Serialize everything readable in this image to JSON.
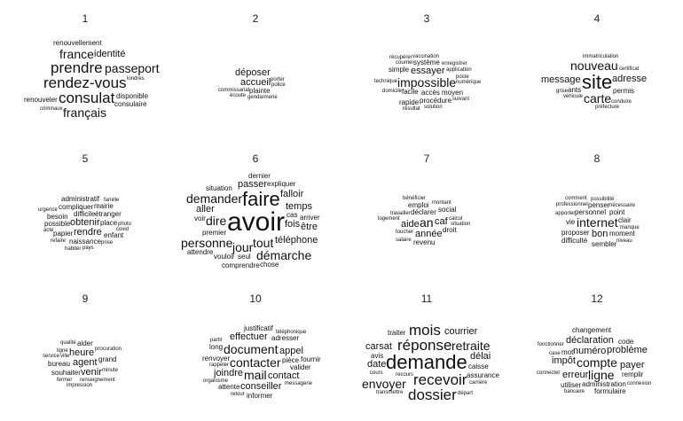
{
  "panels": [
    {
      "number": "1",
      "words": [
        {
          "t": "rendez-vous",
          "s": 5
        },
        {
          "t": "france",
          "s": 4
        },
        {
          "t": "français",
          "s": 4
        },
        {
          "t": "londres",
          "s": 1
        },
        {
          "t": "identité",
          "s": 3
        },
        {
          "t": "criminaux",
          "s": 1
        },
        {
          "t": "prendre",
          "s": 5
        },
        {
          "t": "renouveler",
          "s": 2
        },
        {
          "t": "disponible",
          "s": 2
        },
        {
          "t": "renouvellement",
          "s": 2
        },
        {
          "t": "consulaire",
          "s": 2
        },
        {
          "t": "consulat",
          "s": 5
        },
        {
          "t": "passeport",
          "s": 4
        }
      ]
    },
    {
      "number": "2",
      "words": [
        {
          "t": "gendarmerie",
          "s": 1
        },
        {
          "t": "accueil",
          "s": 3
        },
        {
          "t": "déposer",
          "s": 3
        },
        {
          "t": "porter",
          "s": 1
        },
        {
          "t": "police",
          "s": 1
        },
        {
          "t": "écoute",
          "s": 1
        },
        {
          "t": "commissariat",
          "s": 1
        },
        {
          "t": "plainte",
          "s": 2
        }
      ]
    },
    {
      "number": "3",
      "words": [
        {
          "t": "vaccination",
          "s": 1
        },
        {
          "t": "application",
          "s": 1
        },
        {
          "t": "accès",
          "s": 2
        },
        {
          "t": "procédure",
          "s": 2
        },
        {
          "t": "courriel",
          "s": 1
        },
        {
          "t": "enregistrer",
          "s": 1
        },
        {
          "t": "facile",
          "s": 2
        },
        {
          "t": "solution",
          "s": 1
        },
        {
          "t": "technique",
          "s": 1
        },
        {
          "t": "domicile",
          "s": 1
        },
        {
          "t": "moyen",
          "s": 2
        },
        {
          "t": "essayer",
          "s": 3
        },
        {
          "t": "système",
          "s": 2
        },
        {
          "t": "numérique",
          "s": 1
        },
        {
          "t": "rapide",
          "s": 2
        },
        {
          "t": "simple",
          "s": 2
        },
        {
          "t": "impossible",
          "s": 4
        },
        {
          "t": "résultat",
          "s": 1
        },
        {
          "t": "récupérer",
          "s": 1
        },
        {
          "t": "suivant",
          "s": 1
        },
        {
          "t": "poste",
          "s": 1
        }
      ]
    },
    {
      "number": "4",
      "words": [
        {
          "t": "certificat",
          "s": 1
        },
        {
          "t": "adresse",
          "s": 3
        },
        {
          "t": "véhicule",
          "s": 1
        },
        {
          "t": "ants",
          "s": 2
        },
        {
          "t": "préfecture",
          "s": 1
        },
        {
          "t": "site",
          "s": 6
        },
        {
          "t": "carte",
          "s": 4
        },
        {
          "t": "conduire",
          "s": 1
        },
        {
          "t": "message",
          "s": 3
        },
        {
          "t": "nouveau",
          "s": 4
        },
        {
          "t": "permis",
          "s": 2
        },
        {
          "t": "immatriculation",
          "s": 1
        },
        {
          "t": "grise",
          "s": 1
        }
      ]
    },
    {
      "number": "5",
      "words": [
        {
          "t": "difficile",
          "s": 2
        },
        {
          "t": "obtenir",
          "s": 3
        },
        {
          "t": "compliquer",
          "s": 2
        },
        {
          "t": "photo",
          "s": 1
        },
        {
          "t": "prise",
          "s": 1
        },
        {
          "t": "pays",
          "s": 1
        },
        {
          "t": "urgence",
          "s": 1
        },
        {
          "t": "naissance",
          "s": 2
        },
        {
          "t": "refaire",
          "s": 1
        },
        {
          "t": "rendre",
          "s": 3
        },
        {
          "t": "étranger",
          "s": 2
        },
        {
          "t": "covid",
          "s": 1
        },
        {
          "t": "place",
          "s": 2
        },
        {
          "t": "possible",
          "s": 2
        },
        {
          "t": "papier",
          "s": 2
        },
        {
          "t": "besoin",
          "s": 2
        },
        {
          "t": "habiter",
          "s": 1
        },
        {
          "t": "mairie",
          "s": 2
        },
        {
          "t": "enfant",
          "s": 2
        },
        {
          "t": "administratif",
          "s": 2
        },
        {
          "t": "acte",
          "s": 1
        },
        {
          "t": "famille",
          "s": 1
        }
      ]
    },
    {
      "number": "6",
      "words": [
        {
          "t": "premier",
          "s": 2
        },
        {
          "t": "tout",
          "s": 4
        },
        {
          "t": "jour",
          "s": 4
        },
        {
          "t": "seul",
          "s": 2
        },
        {
          "t": "vouloir",
          "s": 2
        },
        {
          "t": "arriver",
          "s": 2
        },
        {
          "t": "demander",
          "s": 4
        },
        {
          "t": "voir",
          "s": 2
        },
        {
          "t": "avoir",
          "s": 7
        },
        {
          "t": "téléphone",
          "s": 3
        },
        {
          "t": "fois",
          "s": 3
        },
        {
          "t": "temps",
          "s": 3
        },
        {
          "t": "faire",
          "s": 6
        },
        {
          "t": "situation",
          "s": 2
        },
        {
          "t": "expliquer",
          "s": 2
        },
        {
          "t": "cas",
          "s": 2
        },
        {
          "t": "aller",
          "s": 3
        },
        {
          "t": "démarche",
          "s": 4
        },
        {
          "t": "chose",
          "s": 2
        },
        {
          "t": "falloir",
          "s": 3
        },
        {
          "t": "personne",
          "s": 4
        },
        {
          "t": "dernier",
          "s": 2
        },
        {
          "t": "comprendre",
          "s": 2
        },
        {
          "t": "attendre",
          "s": 2
        },
        {
          "t": "être",
          "s": 3
        },
        {
          "t": "dire",
          "s": 4
        },
        {
          "t": "passer",
          "s": 3
        }
      ]
    },
    {
      "number": "7",
      "words": [
        {
          "t": "toucher",
          "s": 1
        },
        {
          "t": "déclarer",
          "s": 2
        },
        {
          "t": "emploi",
          "s": 2
        },
        {
          "t": "travailler",
          "s": 1
        },
        {
          "t": "social",
          "s": 2
        },
        {
          "t": "droit",
          "s": 2
        },
        {
          "t": "montant",
          "s": 1
        },
        {
          "t": "aide",
          "s": 3
        },
        {
          "t": "caf",
          "s": 3
        },
        {
          "t": "an",
          "s": 4
        },
        {
          "t": "calcul",
          "s": 1
        },
        {
          "t": "revenu",
          "s": 2
        },
        {
          "t": "année",
          "s": 3
        },
        {
          "t": "situation",
          "s": 1
        },
        {
          "t": "logement",
          "s": 1
        },
        {
          "t": "bénéficier",
          "s": 1
        },
        {
          "t": "salaire",
          "s": 1
        }
      ]
    },
    {
      "number": "8",
      "words": [
        {
          "t": "possibilité",
          "s": 1
        },
        {
          "t": "personnel",
          "s": 2
        },
        {
          "t": "nécessaire",
          "s": 1
        },
        {
          "t": "proposer",
          "s": 2
        },
        {
          "t": "point",
          "s": 2
        },
        {
          "t": "penser",
          "s": 2
        },
        {
          "t": "professionnel",
          "s": 1
        },
        {
          "t": "moment",
          "s": 2
        },
        {
          "t": "internet",
          "s": 4
        },
        {
          "t": "sembler",
          "s": 2
        },
        {
          "t": "vie",
          "s": 2
        },
        {
          "t": "bon",
          "s": 3
        },
        {
          "t": "clair",
          "s": 2
        },
        {
          "t": "difficulté",
          "s": 2
        },
        {
          "t": "manque",
          "s": 1
        },
        {
          "t": "apporter",
          "s": 1
        },
        {
          "t": "niveau",
          "s": 1
        },
        {
          "t": "comment",
          "s": 1
        }
      ]
    },
    {
      "number": "9",
      "words": [
        {
          "t": "renseignement",
          "s": 1
        },
        {
          "t": "ville",
          "s": 1
        },
        {
          "t": "souhaiter",
          "s": 2
        },
        {
          "t": "procuration",
          "s": 1
        },
        {
          "t": "grand",
          "s": 2
        },
        {
          "t": "agent",
          "s": 3
        },
        {
          "t": "heure",
          "s": 3
        },
        {
          "t": "venir",
          "s": 3
        },
        {
          "t": "minute",
          "s": 1
        },
        {
          "t": "bureau",
          "s": 2
        },
        {
          "t": "aider",
          "s": 2
        },
        {
          "t": "impression",
          "s": 1
        },
        {
          "t": "ligne",
          "s": 1
        },
        {
          "t": "fermer",
          "s": 1
        },
        {
          "t": "qualité",
          "s": 1
        },
        {
          "t": "service",
          "s": 1
        }
      ]
    },
    {
      "number": "10",
      "words": [
        {
          "t": "organisme",
          "s": 1
        },
        {
          "t": "pièce",
          "s": 2
        },
        {
          "t": "conseiller",
          "s": 3
        },
        {
          "t": "renvoyer",
          "s": 2
        },
        {
          "t": "rappeler",
          "s": 1
        },
        {
          "t": "téléphonique",
          "s": 1
        },
        {
          "t": "effectuer",
          "s": 3
        },
        {
          "t": "contact",
          "s": 3
        },
        {
          "t": "adresser",
          "s": 2
        },
        {
          "t": "joindre",
          "s": 3
        },
        {
          "t": "informer",
          "s": 2
        },
        {
          "t": "attente",
          "s": 2
        },
        {
          "t": "justificatif",
          "s": 2
        },
        {
          "t": "contacter",
          "s": 4
        },
        {
          "t": "long",
          "s": 2
        },
        {
          "t": "appel",
          "s": 3
        },
        {
          "t": "valider",
          "s": 2
        },
        {
          "t": "partir",
          "s": 1
        },
        {
          "t": "fournir",
          "s": 2
        },
        {
          "t": "mail",
          "s": 4
        },
        {
          "t": "document",
          "s": 4
        },
        {
          "t": "retour",
          "s": 1
        },
        {
          "t": "messagerie",
          "s": 1
        }
      ]
    },
    {
      "number": "11",
      "words": [
        {
          "t": "recours",
          "s": 1
        },
        {
          "t": "carrière",
          "s": 1
        },
        {
          "t": "carsat",
          "s": 3
        },
        {
          "t": "caisse",
          "s": 2
        },
        {
          "t": "transmettre",
          "s": 1
        },
        {
          "t": "réponse",
          "s": 5
        },
        {
          "t": "courrier",
          "s": 3
        },
        {
          "t": "date",
          "s": 3
        },
        {
          "t": "recevoir",
          "s": 5
        },
        {
          "t": "départ",
          "s": 1
        },
        {
          "t": "envoyer",
          "s": 4
        },
        {
          "t": "avis",
          "s": 2
        },
        {
          "t": "traiter",
          "s": 2
        },
        {
          "t": "dossier",
          "s": 5
        },
        {
          "t": "mois",
          "s": 5
        },
        {
          "t": "délai",
          "s": 3
        },
        {
          "t": "retraite",
          "s": 4
        },
        {
          "t": "cours",
          "s": 1
        },
        {
          "t": "demande",
          "s": 6
        },
        {
          "t": "assurance",
          "s": 2
        }
      ]
    },
    {
      "number": "12",
      "words": [
        {
          "t": "bancaire",
          "s": 1
        },
        {
          "t": "connecter",
          "s": 1
        },
        {
          "t": "fonctionner",
          "s": 1
        },
        {
          "t": "mot",
          "s": 2
        },
        {
          "t": "administration",
          "s": 2
        },
        {
          "t": "numéro",
          "s": 3
        },
        {
          "t": "remplir",
          "s": 2
        },
        {
          "t": "déclaration",
          "s": 3
        },
        {
          "t": "compte",
          "s": 4
        },
        {
          "t": "problème",
          "s": 3
        },
        {
          "t": "ligne",
          "s": 4
        },
        {
          "t": "erreur",
          "s": 3
        },
        {
          "t": "impôt",
          "s": 3
        },
        {
          "t": "payer",
          "s": 3
        },
        {
          "t": "utiliser",
          "s": 2
        },
        {
          "t": "formulaire",
          "s": 2
        },
        {
          "t": "code",
          "s": 2
        },
        {
          "t": "case",
          "s": 1
        },
        {
          "t": "changement",
          "s": 2
        },
        {
          "t": "connexion",
          "s": 1
        }
      ]
    }
  ]
}
